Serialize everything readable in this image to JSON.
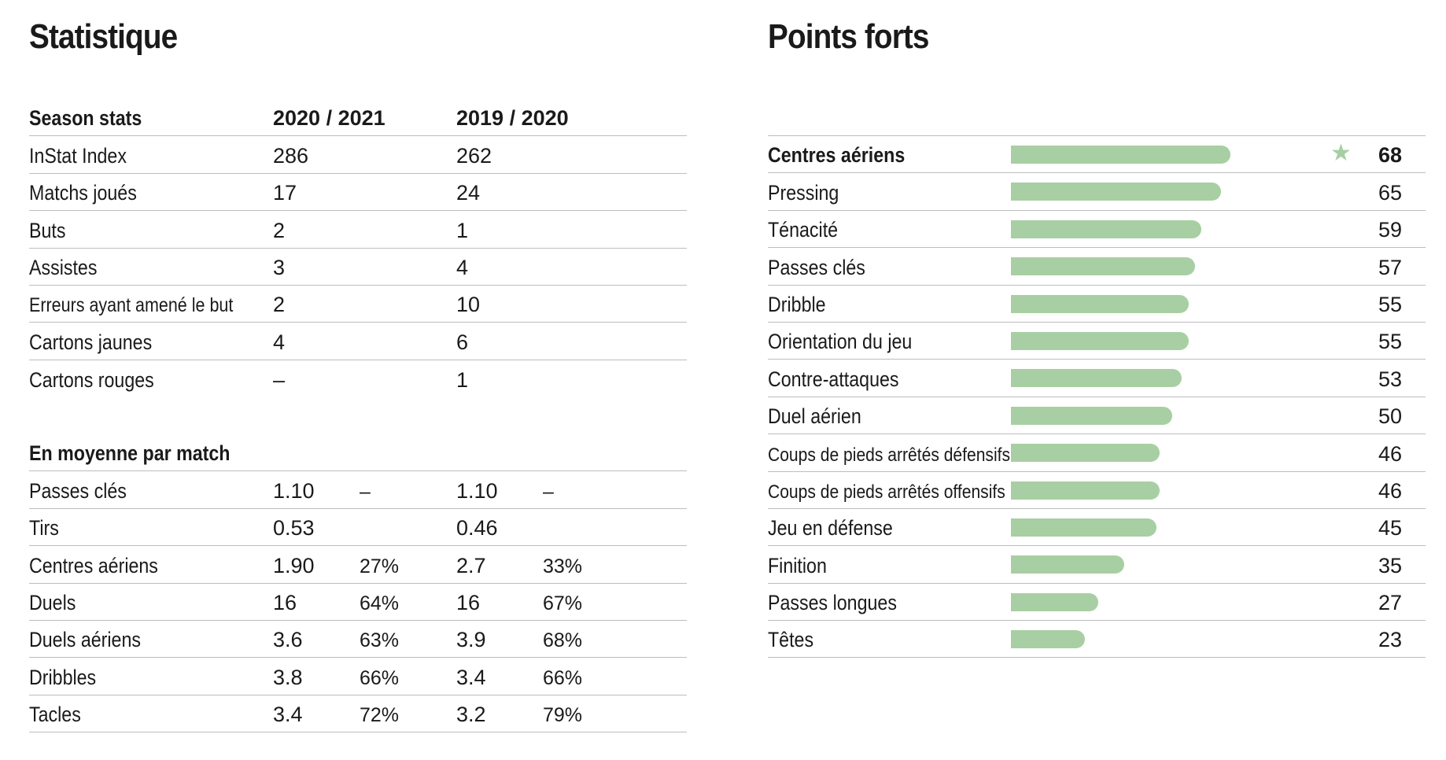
{
  "left": {
    "title": "Statistique",
    "season": {
      "header": [
        "Season stats",
        "2020 / 2021",
        "2019 / 2020"
      ],
      "rows": [
        [
          "InStat Index",
          "286",
          "262"
        ],
        [
          "Matchs joués",
          "17",
          "24"
        ],
        [
          "Buts",
          "2",
          "1"
        ],
        [
          "Assistes",
          "3",
          "4"
        ],
        [
          "Erreurs ayant amené le but",
          "2",
          "10"
        ],
        [
          "Cartons jaunes",
          "4",
          "6"
        ],
        [
          "Cartons rouges",
          "–",
          "1"
        ]
      ]
    },
    "avg": {
      "header": "En moyenne par match",
      "rows": [
        [
          "Passes clés",
          "1.10",
          "–",
          "1.10",
          "–"
        ],
        [
          "Tirs",
          "0.53",
          "",
          "0.46",
          ""
        ],
        [
          "Centres aériens",
          "1.90",
          "27%",
          "2.7",
          "33%"
        ],
        [
          "Duels",
          "16",
          "64%",
          "16",
          "67%"
        ],
        [
          "Duels aériens",
          "3.6",
          "63%",
          "3.9",
          "68%"
        ],
        [
          "Dribbles",
          "3.8",
          "66%",
          "3.4",
          "66%"
        ],
        [
          "Tacles",
          "3.4",
          "72%",
          "3.2",
          "79%"
        ]
      ]
    }
  },
  "right": {
    "title": "Points forts",
    "bar_color": "#a8cfa3",
    "star_icon": "star",
    "items": [
      {
        "label": "Centres aériens",
        "value": 68,
        "top": true
      },
      {
        "label": "Pressing",
        "value": 65
      },
      {
        "label": "Ténacité",
        "value": 59
      },
      {
        "label": "Passes clés",
        "value": 57
      },
      {
        "label": "Dribble",
        "value": 55
      },
      {
        "label": "Orientation du jeu",
        "value": 55
      },
      {
        "label": "Contre-attaques",
        "value": 53
      },
      {
        "label": "Duel aérien",
        "value": 50
      },
      {
        "label": "Coups de pieds arrêtés défensifs",
        "value": 46
      },
      {
        "label": "Coups de pieds arrêtés offensifs",
        "value": 46
      },
      {
        "label": "Jeu en défense",
        "value": 45
      },
      {
        "label": "Finition",
        "value": 35
      },
      {
        "label": "Passes longues",
        "value": 27
      },
      {
        "label": "Têtes",
        "value": 23
      }
    ]
  }
}
